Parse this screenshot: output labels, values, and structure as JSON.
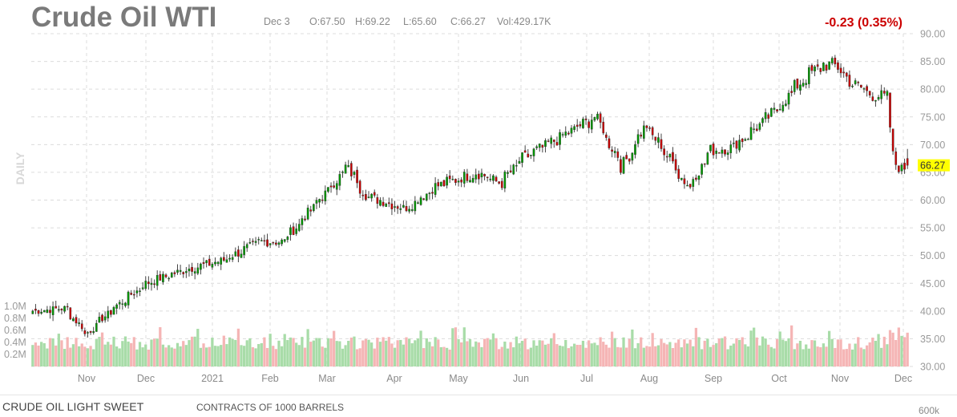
{
  "header": {
    "symbol_title": "Crude Oil WTI",
    "date": "Dec 3",
    "open": "O:67.50",
    "high": "H:69.22",
    "low": "L:65.60",
    "close": "C:66.27",
    "volume": "Vol:429.17K",
    "change": "-0.23 (0.35%)",
    "change_color": "#cc0000",
    "period_label": "DAILY"
  },
  "price_tag": {
    "text": "66.27",
    "value": 66.27,
    "color": "#ffff00"
  },
  "footer": {
    "instrument": "CRUDE OIL LIGHT SWEET",
    "contracts": "CONTRACTS OF 1000 BARRELS",
    "vol_axis_extra": "600k"
  },
  "chart_data": {
    "type": "candlestick",
    "title": "Crude Oil WTI",
    "y_axis": {
      "position": "right",
      "range": [
        30,
        90
      ],
      "ticks": [
        "90.00",
        "85.00",
        "80.00",
        "75.00",
        "70.00",
        "65.00",
        "60.00",
        "55.00",
        "50.00",
        "45.00",
        "40.00",
        "35.00",
        "30.00"
      ]
    },
    "volume_axis": {
      "position": "left",
      "ticks": [
        "1.0M",
        "0.8M",
        "0.6M",
        "0.4M",
        "0.2M"
      ]
    },
    "x_axis": {
      "labels": [
        "Nov",
        "Dec",
        "2021",
        "Feb",
        "Mar",
        "Apr",
        "May",
        "Jun",
        "Jul",
        "Aug",
        "Sep",
        "Oct",
        "Nov",
        "Dec"
      ]
    },
    "grid": true,
    "colors": {
      "up": "#009900",
      "down": "#cc0000",
      "volume_up": "#a8dca8",
      "volume_down": "#f5b5b5"
    },
    "price_anchors": [
      {
        "date": "2020-10-07",
        "close": 40.0
      },
      {
        "date": "2020-10-23",
        "close": 40.5
      },
      {
        "date": "2020-11-02",
        "close": 35.8
      },
      {
        "date": "2020-11-15",
        "close": 40.5
      },
      {
        "date": "2020-12-01",
        "close": 45.0
      },
      {
        "date": "2020-12-20",
        "close": 47.5
      },
      {
        "date": "2021-01-06",
        "close": 49.0
      },
      {
        "date": "2021-01-25",
        "close": 52.5
      },
      {
        "date": "2021-02-05",
        "close": 52.5
      },
      {
        "date": "2021-02-26",
        "close": 61.5
      },
      {
        "date": "2021-03-08",
        "close": 66.0
      },
      {
        "date": "2021-03-18",
        "close": 60.5
      },
      {
        "date": "2021-03-24",
        "close": 60.0
      },
      {
        "date": "2021-04-05",
        "close": 58.5
      },
      {
        "date": "2021-04-20",
        "close": 62.5
      },
      {
        "date": "2021-05-10",
        "close": 65.0
      },
      {
        "date": "2021-05-21",
        "close": 63.0
      },
      {
        "date": "2021-06-01",
        "close": 67.5
      },
      {
        "date": "2021-06-20",
        "close": 71.5
      },
      {
        "date": "2021-07-06",
        "close": 75.0
      },
      {
        "date": "2021-07-19",
        "close": 66.0
      },
      {
        "date": "2021-07-30",
        "close": 73.5
      },
      {
        "date": "2021-08-10",
        "close": 68.0
      },
      {
        "date": "2021-08-20",
        "close": 62.3
      },
      {
        "date": "2021-08-31",
        "close": 69.0
      },
      {
        "date": "2021-09-10",
        "close": 69.5
      },
      {
        "date": "2021-09-28",
        "close": 75.0
      },
      {
        "date": "2021-10-15",
        "close": 82.0
      },
      {
        "date": "2021-10-25",
        "close": 84.5
      },
      {
        "date": "2021-11-01",
        "close": 84.0
      },
      {
        "date": "2021-11-05",
        "close": 81.5
      },
      {
        "date": "2021-11-17",
        "close": 79.0
      },
      {
        "date": "2021-11-24",
        "close": 78.5
      },
      {
        "date": "2021-11-26",
        "close": 68.0
      },
      {
        "date": "2021-12-01",
        "close": 65.5
      },
      {
        "date": "2021-12-03",
        "close": 66.27
      }
    ]
  }
}
